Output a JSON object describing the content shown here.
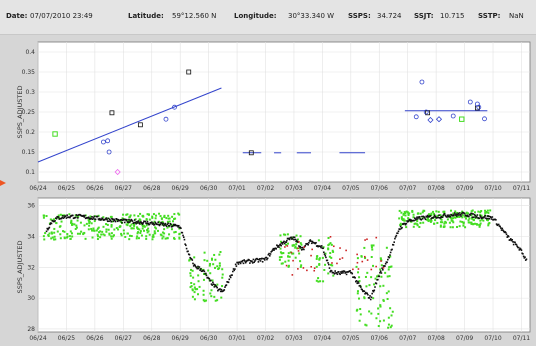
{
  "header": {
    "date_label": "Date:",
    "date_value": "07/07/2010  23:49",
    "lat_label": "Latitude:",
    "lat_value": "59°12.560 N",
    "lon_label": "Longitude:",
    "lon_value": "30°33.340 W",
    "ssps_label": "SSPS:",
    "ssps_value": "34.724",
    "ssjt_label": "SSJT:",
    "ssjt_value": "10.715",
    "sstp_label": "SSTP:",
    "sstp_value": "NaN"
  },
  "colors": {
    "regression": "#3344cc",
    "blue_marker": "#3344cc",
    "black_marker": "#111111",
    "green": "#44dd22",
    "pink": "#ee66ee",
    "red": "#cc2222",
    "pointer": "#ee5522"
  },
  "chart_data": [
    {
      "type": "scatter",
      "ylabel": "SSPS_ADJUSTED",
      "x_tick_labels": [
        "06/24",
        "06/25",
        "06/26",
        "06/27",
        "06/28",
        "06/29",
        "06/30",
        "07/01",
        "07/02",
        "07/03",
        "07/04",
        "07/05",
        "07/06",
        "07/07",
        "07/08",
        "07/09",
        "07/10",
        "07/11"
      ],
      "y_tick_labels": [
        "0.4",
        "0.35",
        "0.3",
        "0.25",
        "0.2",
        "0.15",
        "0.1"
      ],
      "xlim": [
        0,
        17.3
      ],
      "ylim": [
        0.075,
        0.425
      ],
      "regression_lines": [
        {
          "x": [
            0,
            6.45
          ],
          "y": [
            0.125,
            0.31
          ]
        },
        {
          "x": [
            12.9,
            15.8
          ],
          "y": [
            0.253,
            0.253
          ]
        }
      ],
      "flat_segments": [
        {
          "x": [
            7.2,
            7.85
          ],
          "y": [
            0.148,
            0.148
          ]
        },
        {
          "x": [
            8.3,
            8.55
          ],
          "y": [
            0.148,
            0.148
          ]
        },
        {
          "x": [
            9.1,
            9.6
          ],
          "y": [
            0.148,
            0.148
          ]
        },
        {
          "x": [
            10.6,
            11.5
          ],
          "y": [
            0.148,
            0.148
          ]
        }
      ],
      "series": [
        {
          "marker": "square-black",
          "x": [
            2.6,
            3.6,
            5.3,
            7.5,
            13.7,
            15.45
          ],
          "y": [
            0.248,
            0.218,
            0.35,
            0.148,
            0.248,
            0.26
          ]
        },
        {
          "marker": "circle-blue",
          "x": [
            2.3,
            2.45,
            2.5,
            4.5,
            4.8,
            13.3,
            13.5,
            13.65,
            14.6,
            15.2,
            15.45,
            15.5,
            15.7
          ],
          "y": [
            0.175,
            0.178,
            0.15,
            0.232,
            0.262,
            0.238,
            0.325,
            0.25,
            0.24,
            0.275,
            0.27,
            0.262,
            0.233
          ]
        },
        {
          "marker": "diamond-blue",
          "x": [
            13.8,
            14.1
          ],
          "y": [
            0.23,
            0.232
          ]
        },
        {
          "marker": "square-green",
          "x": [
            0.6,
            14.9
          ],
          "y": [
            0.195,
            0.232
          ]
        },
        {
          "marker": "diamond-pink",
          "x": [
            2.8
          ],
          "y": [
            0.1
          ]
        }
      ]
    },
    {
      "type": "scatter",
      "ylabel": "SSPS_ADJUSTED",
      "x_tick_labels": [
        "06/24",
        "06/25",
        "06/26",
        "06/27",
        "06/28",
        "06/29",
        "06/30",
        "07/01",
        "07/02",
        "07/03",
        "07/04",
        "07/05",
        "07/06",
        "07/07",
        "07/08",
        "07/09",
        "07/10",
        "07/11",
        "07"
      ],
      "y_tick_labels": [
        "36",
        "34",
        "32",
        "30",
        "28"
      ],
      "xlim": [
        0,
        17.3
      ],
      "ylim": [
        27.8,
        36.5
      ],
      "black_track": [
        [
          0.3,
          34.4
        ],
        [
          0.5,
          35.0
        ],
        [
          0.7,
          35.2
        ],
        [
          1,
          35.3
        ],
        [
          1.5,
          35.3
        ],
        [
          2,
          35.2
        ],
        [
          2.5,
          35.1
        ],
        [
          3,
          35.0
        ],
        [
          3.5,
          34.95
        ],
        [
          4,
          34.85
        ],
        [
          4.5,
          34.75
        ],
        [
          5,
          34.65
        ],
        [
          5.3,
          32.8
        ],
        [
          5.5,
          32.1
        ],
        [
          5.8,
          31.8
        ],
        [
          6,
          31.2
        ],
        [
          6.3,
          30.6
        ],
        [
          6.5,
          30.4
        ],
        [
          6.8,
          31.5
        ],
        [
          7,
          32.3
        ],
        [
          7.5,
          32.4
        ],
        [
          8,
          32.5
        ],
        [
          8.3,
          33.2
        ],
        [
          8.8,
          33.8
        ],
        [
          9.0,
          33.9
        ],
        [
          9.3,
          33.2
        ],
        [
          9.6,
          33.7
        ],
        [
          10.0,
          33.3
        ],
        [
          10.3,
          31.7
        ],
        [
          10.6,
          31.6
        ],
        [
          11.0,
          31.7
        ],
        [
          11.4,
          30.5
        ],
        [
          11.7,
          30.0
        ],
        [
          12.0,
          31.5
        ],
        [
          12.3,
          32.5
        ],
        [
          12.7,
          34.5
        ],
        [
          13.0,
          35.0
        ],
        [
          13.5,
          35.2
        ],
        [
          14,
          35.3
        ],
        [
          14.5,
          35.4
        ],
        [
          15,
          35.45
        ],
        [
          15.5,
          35.3
        ],
        [
          16,
          35.2
        ],
        [
          16.3,
          34.5
        ],
        [
          16.6,
          33.8
        ],
        [
          16.9,
          33.3
        ],
        [
          17.2,
          32.4
        ]
      ],
      "green_clusters": [
        {
          "x": [
            0.2,
            5.0
          ],
          "y": [
            33.8,
            35.5
          ]
        },
        {
          "x": [
            5.3,
            6.5
          ],
          "y": [
            29.8,
            33.0
          ]
        },
        {
          "x": [
            8.5,
            9.3
          ],
          "y": [
            32.0,
            34.2
          ]
        },
        {
          "x": [
            9.8,
            10.4
          ],
          "y": [
            31.0,
            34.0
          ]
        },
        {
          "x": [
            11.2,
            12.5
          ],
          "y": [
            28.0,
            33.5
          ]
        },
        {
          "x": [
            12.7,
            15.9
          ],
          "y": [
            34.6,
            35.7
          ]
        }
      ]
    }
  ]
}
